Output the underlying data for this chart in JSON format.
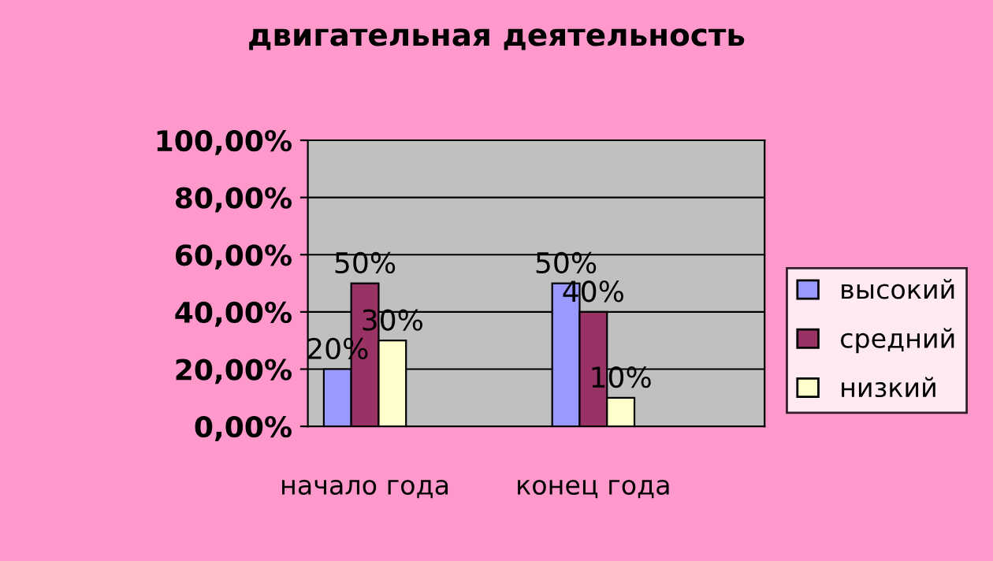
{
  "chart_data": {
    "type": "bar",
    "title": "двигательная деятельность",
    "categories": [
      "начало года",
      "конец года"
    ],
    "series": [
      {
        "name": "высокий",
        "color": "#9999ff",
        "values": [
          20,
          50
        ],
        "value_labels": [
          "20%",
          "50%"
        ]
      },
      {
        "name": "средний",
        "color": "#993366",
        "values": [
          50,
          40
        ],
        "value_labels": [
          "50%",
          "40%"
        ]
      },
      {
        "name": "низкий",
        "color": "#ffffcc",
        "values": [
          30,
          10
        ],
        "value_labels": [
          "30%",
          "10%"
        ]
      }
    ],
    "ylim": [
      0,
      100
    ],
    "yticks": [
      {
        "value": 0,
        "label": "0,00%"
      },
      {
        "value": 20,
        "label": "20,00%"
      },
      {
        "value": 40,
        "label": "40,00%"
      },
      {
        "value": 60,
        "label": "60,00%"
      },
      {
        "value": 80,
        "label": "80,00%"
      },
      {
        "value": 100,
        "label": "100,00%"
      }
    ],
    "grid": "y",
    "legend": "right"
  }
}
